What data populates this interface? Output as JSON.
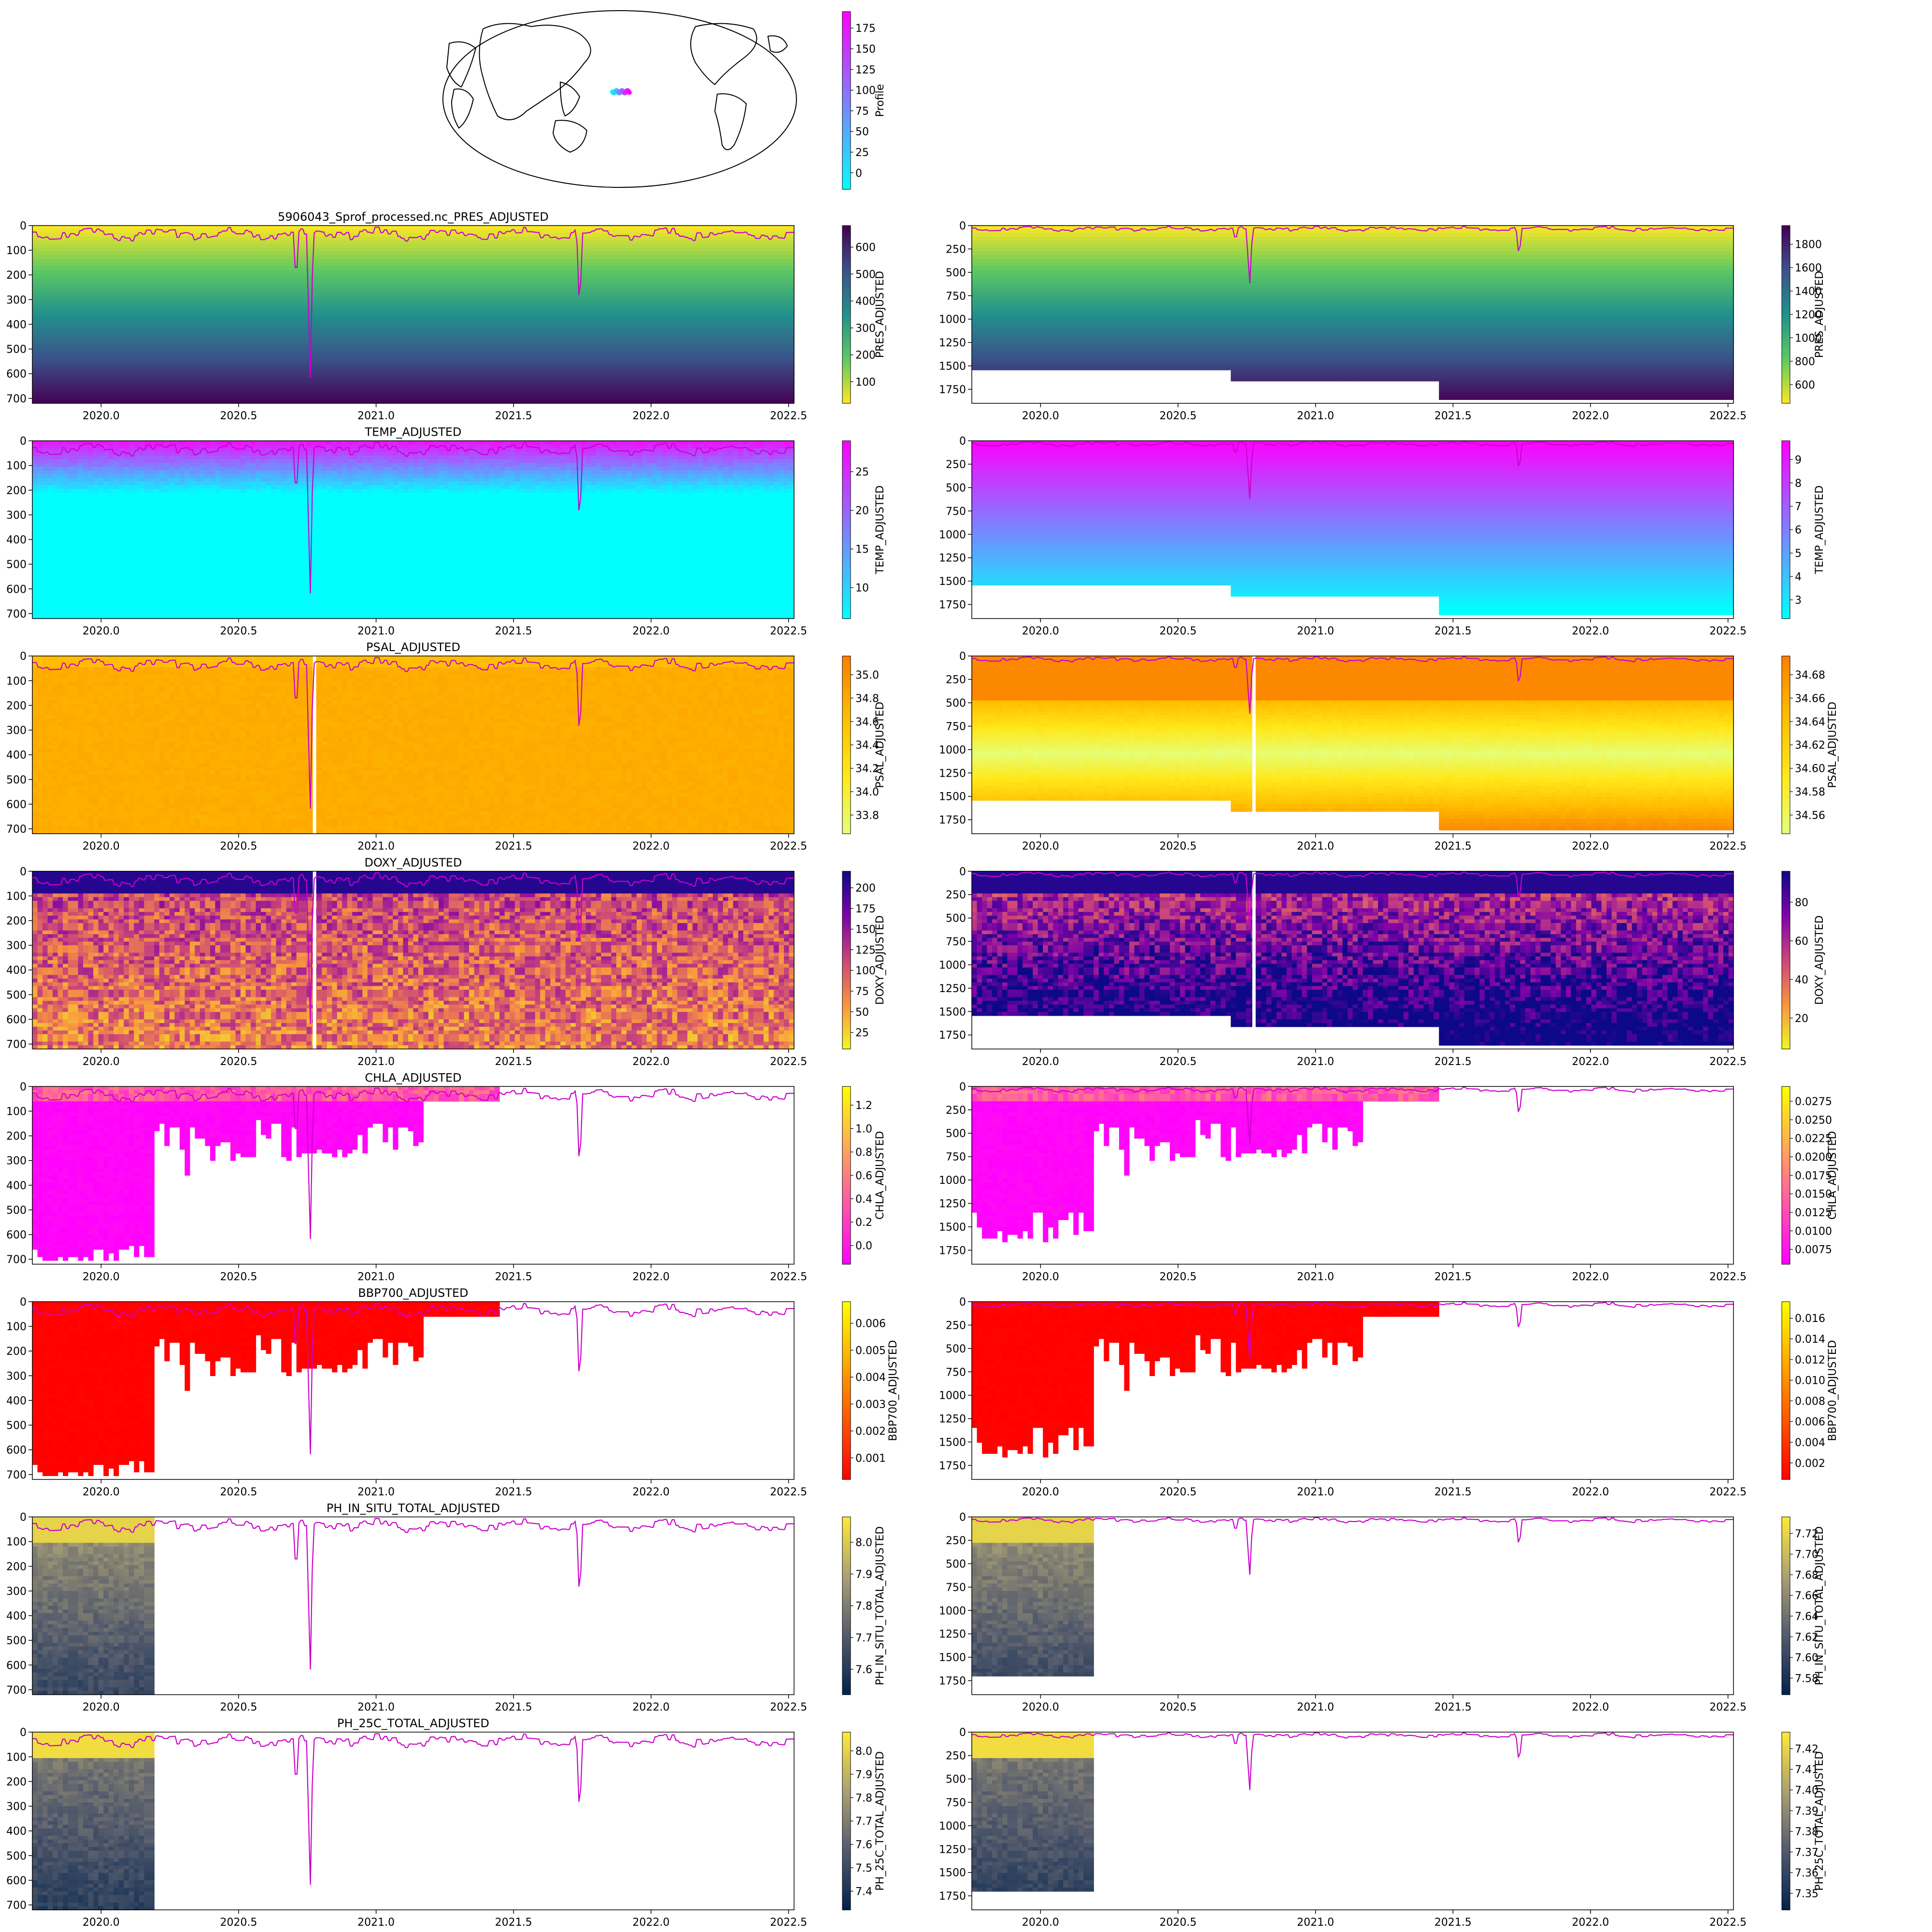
{
  "figure": {
    "suptitle": "5906043_Sprof_processed.nc_PRES_ADJUSTED",
    "x_ticks": [
      "2020.0",
      "2020.5",
      "2021.0",
      "2021.5",
      "2022.0",
      "2022.5"
    ],
    "x_range": [
      2019.75,
      2022.52
    ]
  },
  "map": {
    "colorbar_label": "Profile",
    "colorbar_ticks": [
      "0",
      "25",
      "50",
      "75",
      "100",
      "125",
      "150",
      "175"
    ],
    "colors": [
      "#00ffff",
      "#ff00ff"
    ]
  },
  "rows": [
    {
      "title": "",
      "label": "PRES_ADJUSTED",
      "cmap": "viridis_r",
      "field": "gradient",
      "left": {
        "ticks": [
          "100",
          "200",
          "300",
          "400",
          "500",
          "600"
        ]
      },
      "right": {
        "ticks": [
          "600",
          "800",
          "1000",
          "1200",
          "1400",
          "1600",
          "1800"
        ]
      }
    },
    {
      "title": "TEMP_ADJUSTED",
      "label": "TEMP_ADJUSTED",
      "cmap": "cool",
      "field": "temp",
      "left": {
        "ticks": [
          "10",
          "15",
          "20",
          "25"
        ]
      },
      "right": {
        "ticks": [
          "3",
          "4",
          "5",
          "6",
          "7",
          "8",
          "9"
        ]
      }
    },
    {
      "title": "PSAL_ADJUSTED",
      "label": "PSAL_ADJUSTED",
      "cmap": "Wistia",
      "field": "psal",
      "left": {
        "ticks": [
          "33.8",
          "34.0",
          "34.2",
          "34.4",
          "34.6",
          "34.8",
          "35.0"
        ]
      },
      "right": {
        "ticks": [
          "34.56",
          "34.58",
          "34.60",
          "34.62",
          "34.64",
          "34.66",
          "34.68"
        ]
      }
    },
    {
      "title": "DOXY_ADJUSTED",
      "label": "DOXY_ADJUSTED",
      "cmap": "plasma_r",
      "field": "doxy",
      "left": {
        "ticks": [
          "25",
          "50",
          "75",
          "100",
          "125",
          "150",
          "175",
          "200"
        ]
      },
      "right": {
        "ticks": [
          "20",
          "40",
          "60",
          "80"
        ]
      }
    },
    {
      "title": "CHLA_ADJUSTED",
      "label": "CHLA_ADJUSTED",
      "cmap": "spring",
      "field": "chla",
      "left": {
        "ticks": [
          "0.0",
          "0.2",
          "0.4",
          "0.6",
          "0.8",
          "1.0",
          "1.2"
        ]
      },
      "right": {
        "ticks": [
          "0.0075",
          "0.0100",
          "0.0125",
          "0.0150",
          "0.0175",
          "0.0200",
          "0.0225",
          "0.0250",
          "0.0275"
        ]
      }
    },
    {
      "title": "BBP700_ADJUSTED",
      "label": "BBP700_ADJUSTED",
      "cmap": "autumn",
      "field": "bbp",
      "left": {
        "ticks": [
          "0.001",
          "0.002",
          "0.003",
          "0.004",
          "0.005",
          "0.006"
        ]
      },
      "right": {
        "ticks": [
          "0.002",
          "0.004",
          "0.006",
          "0.008",
          "0.010",
          "0.012",
          "0.014",
          "0.016"
        ]
      }
    },
    {
      "title": "PH_IN_SITU_TOTAL_ADJUSTED",
      "label": "PH_IN_SITU_TOTAL_ADJUSTED",
      "cmap": "cividis",
      "field": "ph",
      "left": {
        "ticks": [
          "7.6",
          "7.7",
          "7.8",
          "7.9",
          "8.0"
        ]
      },
      "right": {
        "ticks": [
          "7.58",
          "7.60",
          "7.62",
          "7.64",
          "7.66",
          "7.68",
          "7.70",
          "7.72"
        ]
      }
    },
    {
      "title": "PH_25C_TOTAL_ADJUSTED",
      "label": "PH_25C_TOTAL_ADJUSTED",
      "cmap": "cividis",
      "field": "ph25",
      "left": {
        "ticks": [
          "7.4",
          "7.5",
          "7.6",
          "7.7",
          "7.8",
          "7.9",
          "8.0"
        ]
      },
      "right": {
        "ticks": [
          "7.35",
          "7.36",
          "7.37",
          "7.38",
          "7.39",
          "7.40",
          "7.41",
          "7.42"
        ]
      }
    }
  ],
  "chart_data": {
    "type": "heatmap",
    "x_range": [
      2019.75,
      2022.52
    ],
    "left_panel": {
      "yticks": [
        "0",
        "100",
        "200",
        "300",
        "400",
        "500",
        "600",
        "700"
      ],
      "y_range": [
        0,
        720
      ],
      "inverted": true
    },
    "right_panel": {
      "yticks": [
        "0",
        "250",
        "500",
        "750",
        "1000",
        "1250",
        "1500",
        "1750"
      ],
      "y_range": [
        0,
        1900
      ],
      "inverted": true
    },
    "mixed_layer_line": {
      "color": "#cc00cc",
      "note_spikes_at": [
        2020.76,
        2021.74
      ],
      "spike_depth_left": [
        680,
        355
      ],
      "spike_depth_right": [
        680,
        340
      ]
    }
  }
}
